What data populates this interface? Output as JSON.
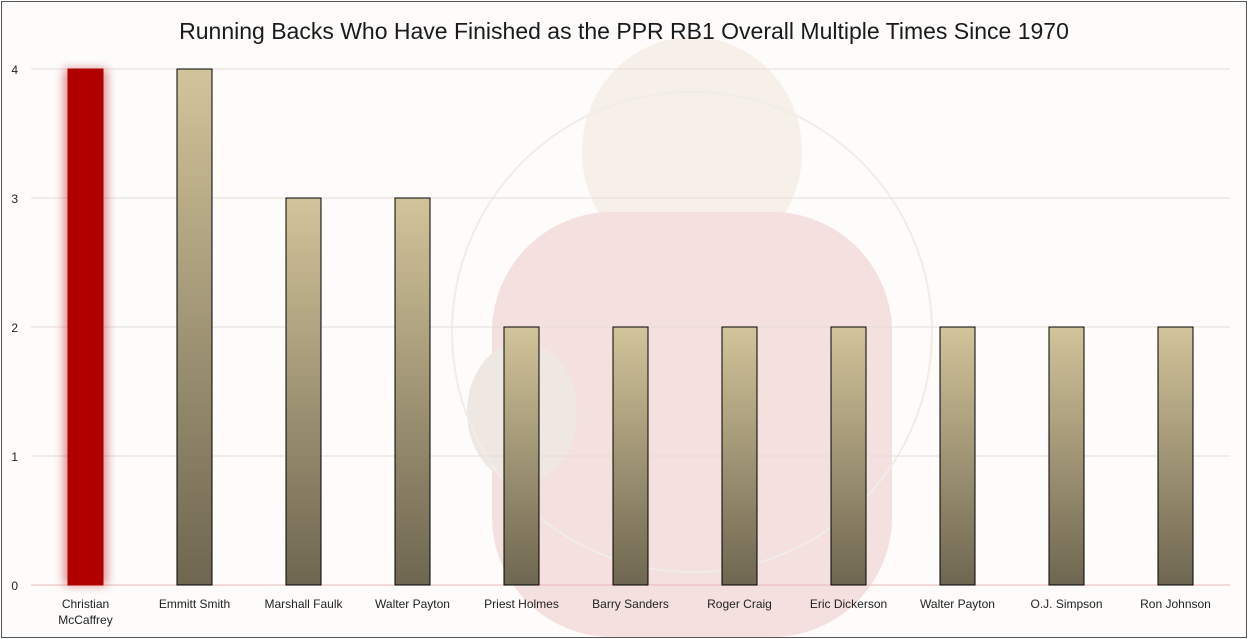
{
  "chart_data": {
    "type": "bar",
    "title": "Running Backs Who Have Finished as the PPR RB1 Overall Multiple Times Since 1970",
    "xlabel": "",
    "ylabel": "",
    "ylim": [
      0,
      4
    ],
    "yticks": [
      "0",
      "1",
      "2",
      "3",
      "4"
    ],
    "grid": true,
    "categories": [
      "Christian McCaffrey",
      "Emmitt Smith",
      "Marshall Faulk",
      "Walter Payton",
      "Priest Holmes",
      "Barry Sanders",
      "Roger Craig",
      "Eric Dickerson",
      "Walter Payton",
      "O.J. Simpson",
      "Ron Johnson"
    ],
    "values": [
      4,
      4,
      3,
      3,
      2,
      2,
      2,
      2,
      2,
      2,
      2
    ],
    "highlight_index": 0,
    "colors": {
      "highlight": "#b00000",
      "bar_top": "#d2c49a",
      "bar_bottom": "#6e6650",
      "bar_border": "#000000",
      "grid": "#e8dcd6",
      "axis": "#f0b8b8"
    }
  }
}
